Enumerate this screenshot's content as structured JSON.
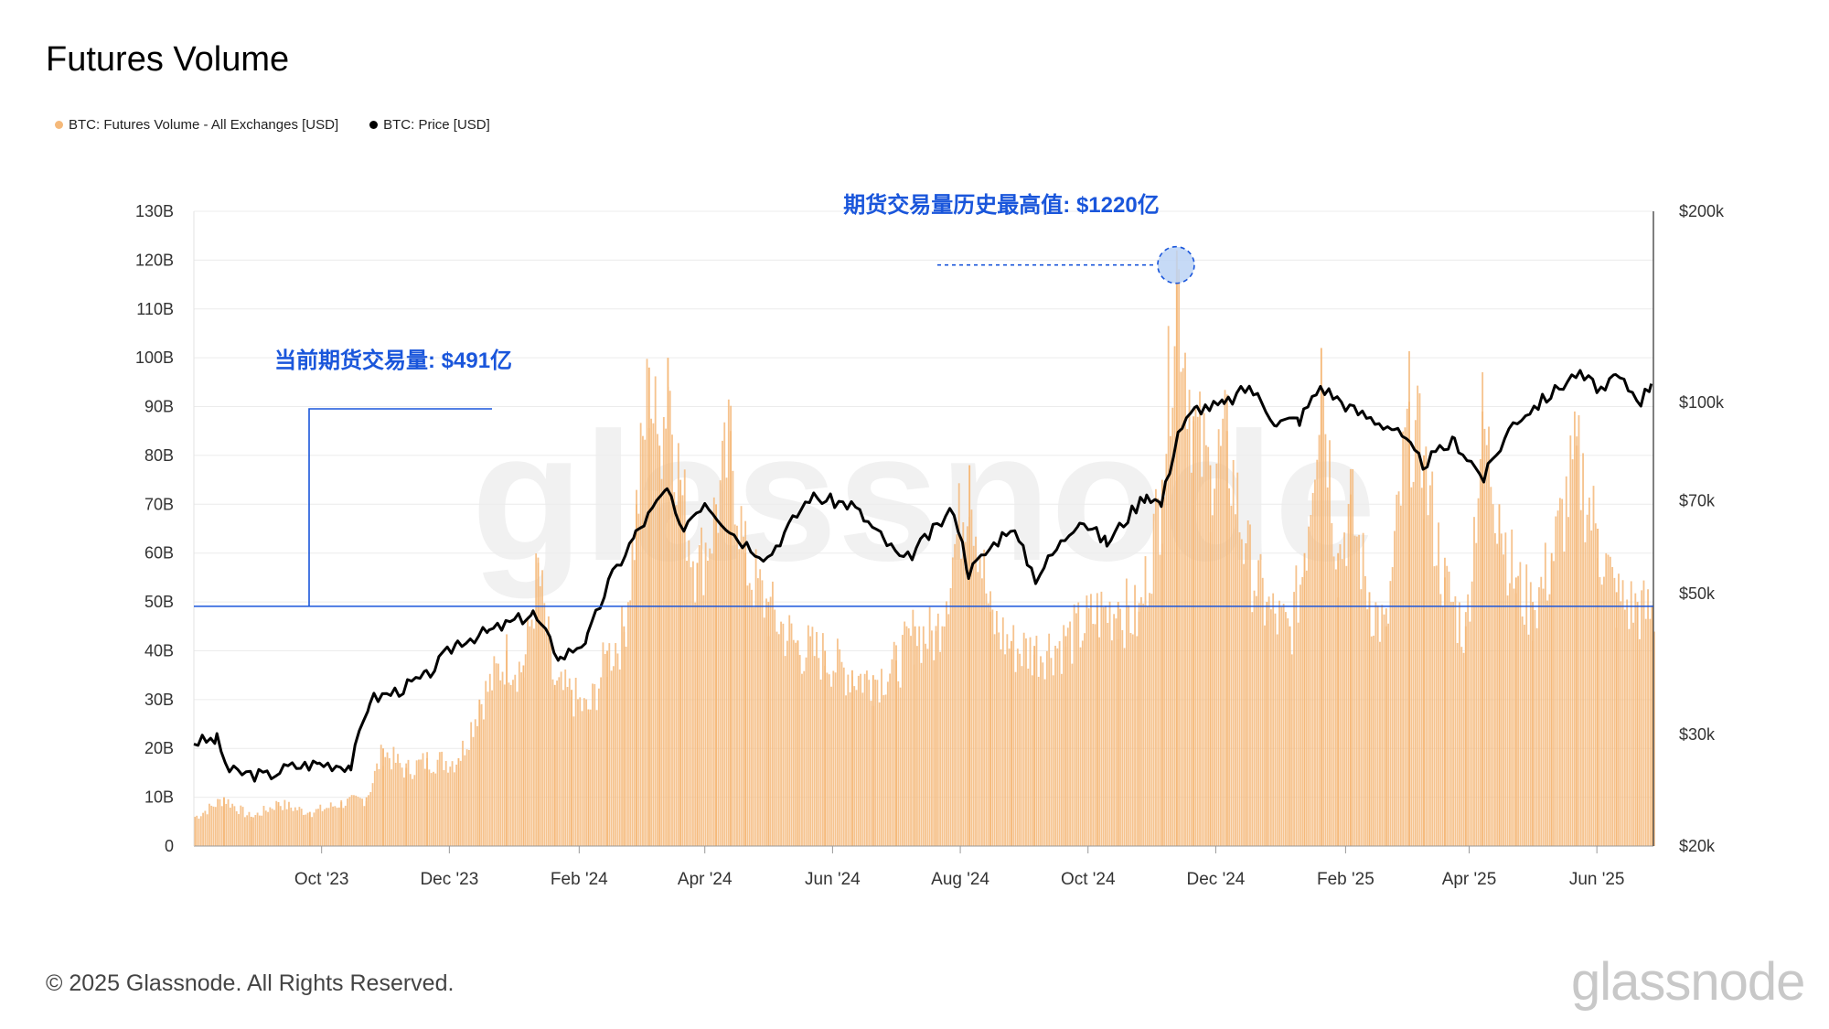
{
  "title": "Futures Volume",
  "legend": [
    {
      "label": "BTC: Futures Volume - All Exchanges [USD]",
      "color": "#f5b97a"
    },
    {
      "label": "BTC: Price [USD]",
      "color": "#000000"
    }
  ],
  "footer": "© 2025 Glassnode. All Rights Reserved.",
  "brand": "glassnode",
  "watermark": "glassnode",
  "annotations": {
    "ath_label": "期货交易量历史最高值: $1220亿",
    "current_label": "当前期货交易量: $491亿",
    "color": "#1a56db"
  },
  "chart_data": {
    "type": "bar",
    "x_range": [
      "2023-08-01",
      "2025-06-28"
    ],
    "xticks": [
      "Oct '23",
      "Dec '23",
      "Feb '24",
      "Apr '24",
      "Jun '24",
      "Aug '24",
      "Oct '24",
      "Dec '24",
      "Feb '25",
      "Apr '25",
      "Jun '25"
    ],
    "xtick_dates": [
      "2023-10-01",
      "2023-12-01",
      "2024-02-01",
      "2024-04-01",
      "2024-06-01",
      "2024-08-01",
      "2024-10-01",
      "2024-12-01",
      "2025-02-01",
      "2025-04-01",
      "2025-06-01"
    ],
    "y_left": {
      "ticks": [
        "0",
        "10B",
        "20B",
        "30B",
        "40B",
        "50B",
        "60B",
        "70B",
        "80B",
        "90B",
        "100B",
        "110B",
        "120B",
        "130B"
      ],
      "tick_values": [
        0,
        10,
        20,
        30,
        40,
        50,
        60,
        70,
        80,
        90,
        100,
        110,
        120,
        130
      ],
      "unit": "B",
      "ylim": [
        0,
        130
      ]
    },
    "y_right": {
      "scale": "log",
      "ticks": [
        "$20k",
        "$30k",
        "$50k",
        "$70k",
        "$100k",
        "$200k"
      ],
      "tick_values": [
        20000,
        30000,
        50000,
        70000,
        100000,
        200000
      ],
      "ylim": [
        20000,
        200000
      ]
    },
    "series": [
      {
        "name": "BTC: Futures Volume - All Exchanges [USD]",
        "axis": "left",
        "kind": "bar",
        "color": "#f5b97a",
        "points": [
          [
            "2023-08-01",
            6
          ],
          [
            "2023-08-15",
            10
          ],
          [
            "2023-08-28",
            6
          ],
          [
            "2023-09-10",
            9
          ],
          [
            "2023-09-25",
            7
          ],
          [
            "2023-10-10",
            9
          ],
          [
            "2023-10-22",
            10
          ],
          [
            "2023-10-30",
            20
          ],
          [
            "2023-11-10",
            16
          ],
          [
            "2023-11-20",
            18
          ],
          [
            "2023-12-05",
            18
          ],
          [
            "2023-12-15",
            30
          ],
          [
            "2023-12-28",
            40
          ],
          [
            "2024-01-05",
            37
          ],
          [
            "2024-01-12",
            58
          ],
          [
            "2024-01-20",
            33
          ],
          [
            "2024-01-28",
            32
          ],
          [
            "2024-02-05",
            28
          ],
          [
            "2024-02-14",
            40
          ],
          [
            "2024-02-22",
            45
          ],
          [
            "2024-02-28",
            70
          ],
          [
            "2024-03-05",
            98
          ],
          [
            "2024-03-10",
            82
          ],
          [
            "2024-03-14",
            100
          ],
          [
            "2024-03-20",
            75
          ],
          [
            "2024-03-28",
            58
          ],
          [
            "2024-04-06",
            70
          ],
          [
            "2024-04-13",
            85
          ],
          [
            "2024-04-20",
            60
          ],
          [
            "2024-05-01",
            50
          ],
          [
            "2024-05-15",
            42
          ],
          [
            "2024-05-28",
            40
          ],
          [
            "2024-06-10",
            36
          ],
          [
            "2024-06-20",
            35
          ],
          [
            "2024-07-01",
            38
          ],
          [
            "2024-07-10",
            45
          ],
          [
            "2024-07-20",
            44
          ],
          [
            "2024-08-05",
            78
          ],
          [
            "2024-08-15",
            48
          ],
          [
            "2024-08-25",
            42
          ],
          [
            "2024-09-05",
            41
          ],
          [
            "2024-09-20",
            43
          ],
          [
            "2024-10-05",
            49
          ],
          [
            "2024-10-15",
            50
          ],
          [
            "2024-10-25",
            48
          ],
          [
            "2024-11-05",
            75
          ],
          [
            "2024-11-12",
            122
          ],
          [
            "2024-11-20",
            88
          ],
          [
            "2024-11-28",
            78
          ],
          [
            "2024-12-06",
            85
          ],
          [
            "2024-12-15",
            62
          ],
          [
            "2024-12-25",
            50
          ],
          [
            "2025-01-05",
            45
          ],
          [
            "2025-01-12",
            60
          ],
          [
            "2025-01-20",
            102
          ],
          [
            "2025-01-28",
            60
          ],
          [
            "2025-02-03",
            72
          ],
          [
            "2025-02-12",
            52
          ],
          [
            "2025-02-20",
            45
          ],
          [
            "2025-03-03",
            91
          ],
          [
            "2025-03-10",
            80
          ],
          [
            "2025-03-20",
            55
          ],
          [
            "2025-03-30",
            45
          ],
          [
            "2025-04-07",
            89
          ],
          [
            "2025-04-15",
            70
          ],
          [
            "2025-04-23",
            55
          ],
          [
            "2025-05-01",
            50
          ],
          [
            "2025-05-10",
            60
          ],
          [
            "2025-05-22",
            82
          ],
          [
            "2025-06-01",
            65
          ],
          [
            "2025-06-10",
            52
          ],
          [
            "2025-06-20",
            50
          ],
          [
            "2025-06-27",
            49
          ]
        ]
      },
      {
        "name": "BTC: Price [USD]",
        "axis": "right",
        "kind": "line",
        "color": "#000000",
        "points": [
          [
            "2023-08-01",
            29200
          ],
          [
            "2023-08-12",
            29400
          ],
          [
            "2023-08-18",
            26200
          ],
          [
            "2023-09-05",
            25800
          ],
          [
            "2023-09-15",
            26600
          ],
          [
            "2023-09-30",
            27000
          ],
          [
            "2023-10-15",
            26800
          ],
          [
            "2023-10-24",
            34000
          ],
          [
            "2023-11-05",
            35000
          ],
          [
            "2023-11-20",
            37000
          ],
          [
            "2023-12-05",
            42000
          ],
          [
            "2023-12-20",
            43500
          ],
          [
            "2024-01-10",
            46500
          ],
          [
            "2024-01-23",
            39500
          ],
          [
            "2024-02-05",
            42500
          ],
          [
            "2024-02-15",
            52000
          ],
          [
            "2024-02-28",
            62000
          ],
          [
            "2024-03-14",
            73000
          ],
          [
            "2024-03-20",
            63000
          ],
          [
            "2024-04-01",
            70000
          ],
          [
            "2024-04-17",
            61000
          ],
          [
            "2024-05-01",
            57000
          ],
          [
            "2024-05-21",
            71000
          ],
          [
            "2024-06-10",
            69000
          ],
          [
            "2024-06-25",
            61000
          ],
          [
            "2024-07-05",
            56000
          ],
          [
            "2024-07-29",
            68000
          ],
          [
            "2024-08-05",
            54000
          ],
          [
            "2024-08-25",
            64000
          ],
          [
            "2024-09-06",
            53000
          ],
          [
            "2024-09-27",
            65800
          ],
          [
            "2024-10-10",
            60000
          ],
          [
            "2024-10-29",
            72000
          ],
          [
            "2024-11-05",
            69000
          ],
          [
            "2024-11-13",
            90000
          ],
          [
            "2024-11-22",
            98000
          ],
          [
            "2024-12-05",
            99000
          ],
          [
            "2024-12-17",
            106000
          ],
          [
            "2024-12-30",
            93000
          ],
          [
            "2025-01-10",
            94000
          ],
          [
            "2025-01-20",
            106000
          ],
          [
            "2025-02-05",
            97000
          ],
          [
            "2025-02-24",
            91000
          ],
          [
            "2025-03-10",
            80000
          ],
          [
            "2025-03-25",
            87000
          ],
          [
            "2025-04-08",
            76000
          ],
          [
            "2025-04-22",
            93000
          ],
          [
            "2025-05-10",
            103000
          ],
          [
            "2025-05-22",
            111000
          ],
          [
            "2025-06-05",
            104000
          ],
          [
            "2025-06-10",
            110000
          ],
          [
            "2025-06-22",
            101000
          ],
          [
            "2025-06-27",
            107000
          ]
        ]
      }
    ],
    "reference_line": {
      "value": 49.1,
      "axis": "left"
    },
    "ath_marker": {
      "date": "2024-11-12",
      "value": 122
    },
    "grid": true,
    "legend_position": "top-left"
  }
}
